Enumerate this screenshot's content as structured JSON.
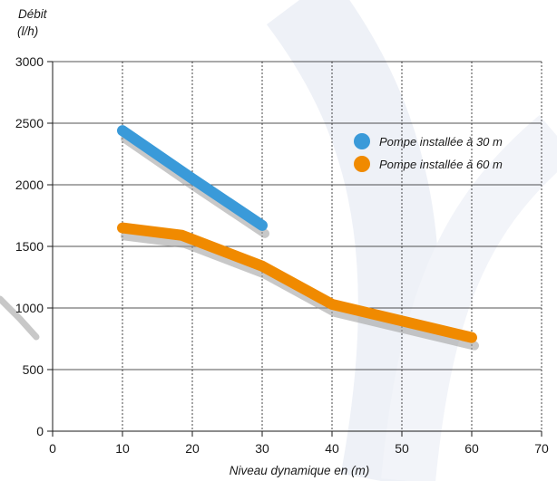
{
  "chart_data": {
    "type": "line",
    "ylabel_line1": "Débit",
    "ylabel_line2": "(l/h)",
    "xlabel": "Niveau dynamique en (m)",
    "xlim": [
      0,
      70
    ],
    "ylim": [
      0,
      3000
    ],
    "x_ticks": [
      0,
      10,
      20,
      30,
      40,
      50,
      60,
      70
    ],
    "y_ticks": [
      0,
      500,
      1000,
      1500,
      2000,
      2500,
      3000
    ],
    "grid": true,
    "legend_position": "top-right",
    "series": [
      {
        "name": "Pompe installée à 30 m",
        "color": "#3a9ad9",
        "x": [
          10,
          20,
          30
        ],
        "y": [
          2440,
          2050,
          1670
        ]
      },
      {
        "name": "Pompe installée à 60 m",
        "color": "#f08a00",
        "x": [
          10,
          18.5,
          30,
          40,
          60
        ],
        "y": [
          1650,
          1590,
          1340,
          1030,
          760
        ]
      }
    ]
  }
}
